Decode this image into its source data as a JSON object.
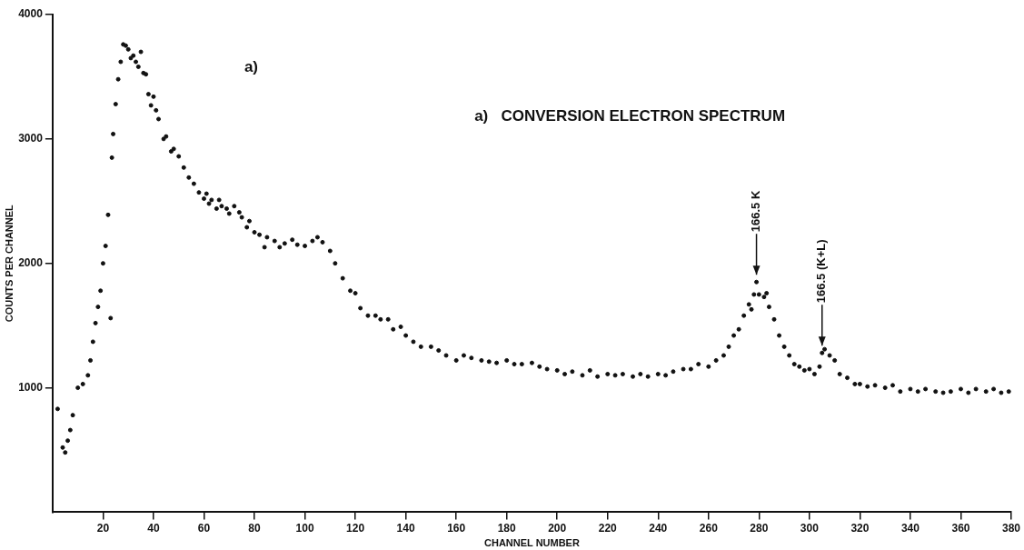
{
  "chart_data": {
    "type": "scatter",
    "title": "a)   CONVERSION ELECTRON SPECTRUM",
    "xlabel": "CHANNEL NUMBER",
    "ylabel": "COUNTS PER CHANNEL",
    "annotations": [
      "a)",
      {
        "text": "166.5 K",
        "x": 279,
        "y": 1850
      },
      {
        "text": "166.5 (K+L)",
        "x": 305,
        "y": 1280
      }
    ],
    "xlim": [
      0,
      380
    ],
    "xticks": [
      20,
      40,
      60,
      80,
      100,
      120,
      140,
      160,
      180,
      200,
      220,
      240,
      260,
      280,
      300,
      320,
      340,
      360,
      380
    ],
    "ylim": [
      0,
      4000
    ],
    "yticks": [
      1000,
      2000,
      3000,
      4000
    ],
    "grid": false,
    "legend": false,
    "marker": "circle",
    "series": [
      {
        "color": "#111111",
        "x": [
          2,
          4,
          5,
          6,
          7,
          8,
          10,
          12,
          14,
          15,
          16,
          17,
          18,
          19,
          20,
          21,
          22,
          23,
          23.5,
          24,
          25,
          26,
          27,
          28,
          29,
          30,
          31,
          32,
          33,
          34,
          35,
          36,
          37,
          38,
          39,
          40,
          41,
          42,
          44,
          45,
          47,
          48,
          50,
          52,
          54,
          56,
          58,
          60,
          61,
          62,
          63,
          65,
          66,
          67,
          69,
          70,
          72,
          74,
          75,
          77,
          78,
          80,
          82,
          84,
          85,
          88,
          90,
          92,
          95,
          97,
          100,
          103,
          105,
          107,
          110,
          112,
          115,
          118,
          120,
          122,
          125,
          128,
          130,
          133,
          135,
          138,
          140,
          143,
          146,
          150,
          153,
          156,
          160,
          163,
          166,
          170,
          173,
          176,
          180,
          183,
          186,
          190,
          193,
          196,
          200,
          203,
          206,
          210,
          213,
          216,
          220,
          223,
          226,
          230,
          233,
          236,
          240,
          243,
          246,
          250,
          253,
          256,
          260,
          263,
          266,
          268,
          270,
          272,
          274,
          276,
          277,
          278,
          279,
          280,
          282,
          283,
          284,
          286,
          288,
          290,
          292,
          294,
          296,
          298,
          300,
          302,
          304,
          305,
          306,
          308,
          310,
          312,
          315,
          318,
          320,
          323,
          326,
          330,
          333,
          336,
          340,
          343,
          346,
          350,
          353,
          356,
          360,
          363,
          366,
          370,
          373,
          376,
          379
        ],
        "values": [
          830,
          520,
          480,
          575,
          660,
          780,
          1000,
          1030,
          1100,
          1220,
          1370,
          1520,
          1650,
          1780,
          2000,
          2140,
          2390,
          1560,
          2850,
          3040,
          3280,
          3480,
          3620,
          3760,
          3750,
          3720,
          3650,
          3670,
          3620,
          3580,
          3700,
          3530,
          3520,
          3360,
          3270,
          3340,
          3230,
          3160,
          3000,
          3020,
          2900,
          2920,
          2860,
          2770,
          2690,
          2640,
          2570,
          2520,
          2560,
          2480,
          2510,
          2440,
          2510,
          2460,
          2440,
          2400,
          2460,
          2410,
          2370,
          2290,
          2340,
          2250,
          2230,
          2130,
          2210,
          2180,
          2130,
          2160,
          2190,
          2150,
          2140,
          2180,
          2210,
          2170,
          2100,
          2000,
          1880,
          1780,
          1760,
          1640,
          1580,
          1580,
          1550,
          1550,
          1470,
          1490,
          1420,
          1370,
          1330,
          1330,
          1300,
          1260,
          1220,
          1260,
          1240,
          1220,
          1210,
          1200,
          1220,
          1190,
          1190,
          1200,
          1170,
          1150,
          1140,
          1110,
          1130,
          1100,
          1140,
          1090,
          1110,
          1100,
          1110,
          1090,
          1110,
          1090,
          1110,
          1100,
          1130,
          1150,
          1150,
          1190,
          1170,
          1220,
          1260,
          1330,
          1420,
          1470,
          1580,
          1670,
          1630,
          1750,
          1850,
          1750,
          1730,
          1760,
          1650,
          1550,
          1420,
          1330,
          1260,
          1190,
          1170,
          1140,
          1150,
          1110,
          1170,
          1280,
          1310,
          1260,
          1220,
          1110,
          1080,
          1030,
          1030,
          1010,
          1020,
          1000,
          1020,
          970,
          990,
          970,
          990,
          970,
          960,
          970,
          990,
          960,
          990,
          970,
          990,
          960,
          970
        ]
      }
    ]
  }
}
